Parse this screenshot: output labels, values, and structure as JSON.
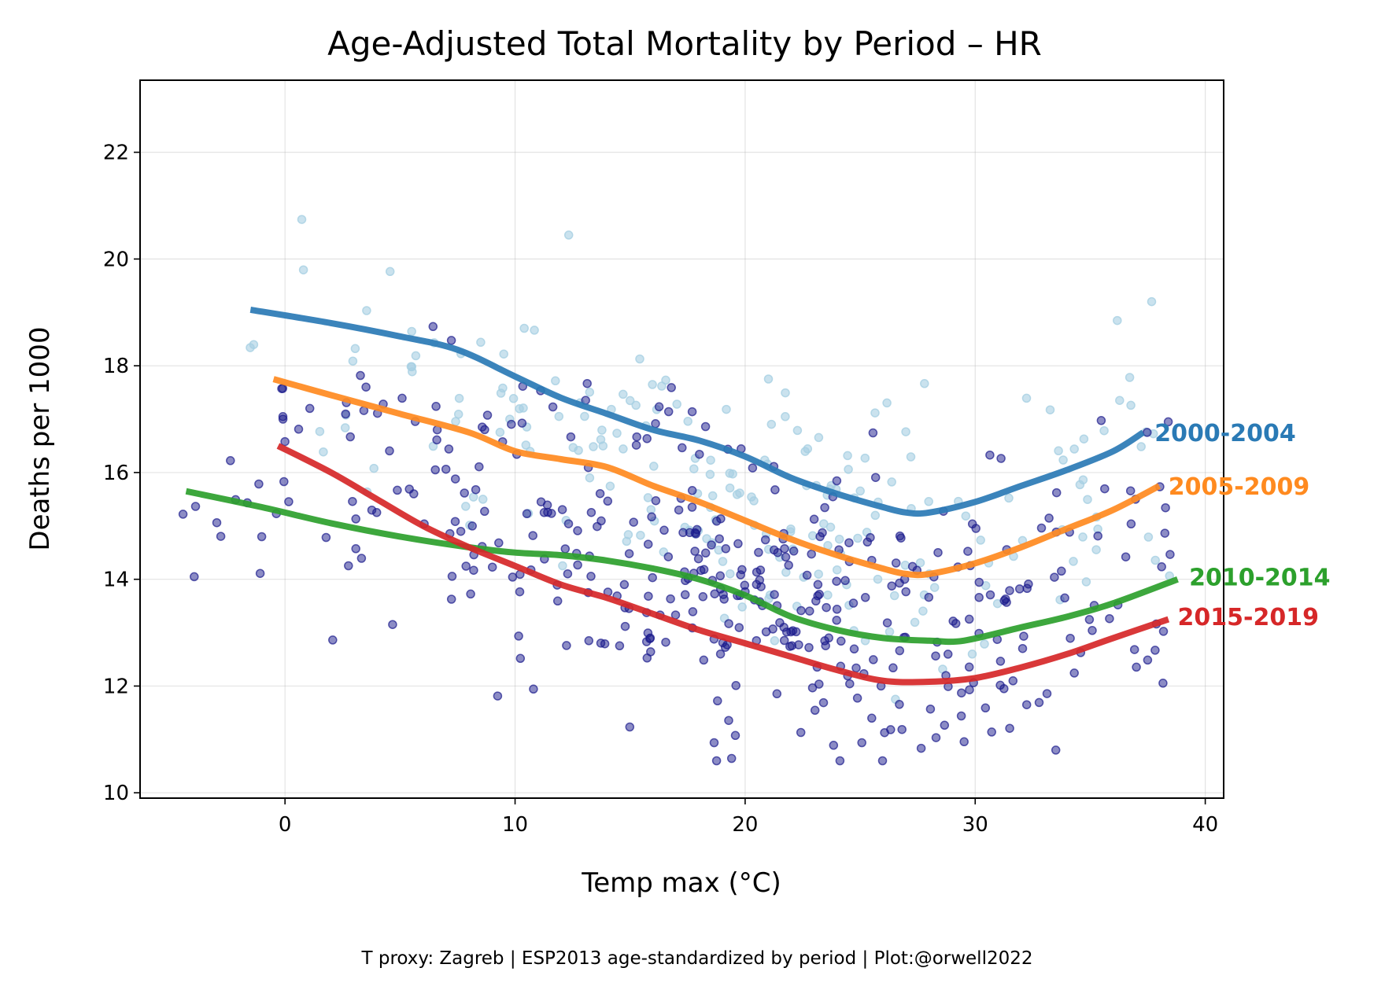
{
  "chart_data": {
    "type": "scatter",
    "title": "Age-Adjusted Total Mortality by Period – HR",
    "xlabel": "Temp max (°C)",
    "ylabel": "Deaths per 1000",
    "caption": "T proxy: Zagreb | ESP2013 age-standardized by period | Plot:@orwell2022",
    "xlim": [
      -6.3,
      40.8
    ],
    "ylim": [
      9.9,
      23.35
    ],
    "xticks": [
      0,
      10,
      20,
      30,
      40
    ],
    "yticks": [
      10,
      12,
      14,
      16,
      18,
      20,
      22
    ],
    "grid": true,
    "legend": "inline labels at right end of each curve",
    "scatter_colors": {
      "early": "#a6cfe2",
      "late": "#1a1a8c"
    },
    "series": [
      {
        "name": "2000-2004",
        "color": "#2a7ab5",
        "x": [
          -1.5,
          2,
          5,
          7.5,
          10,
          12,
          14,
          16,
          18,
          20,
          22,
          24,
          26,
          27,
          28,
          30,
          32,
          34,
          36,
          37.3
        ],
        "y": [
          19.05,
          18.8,
          18.55,
          18.3,
          17.8,
          17.4,
          17.1,
          16.8,
          16.6,
          16.3,
          15.9,
          15.6,
          15.35,
          15.25,
          15.25,
          15.45,
          15.75,
          16.05,
          16.4,
          16.75
        ]
      },
      {
        "name": "2005-2009",
        "color": "#ff8a1f",
        "x": [
          -0.5,
          2,
          5,
          8,
          10,
          12,
          14,
          16,
          18,
          20,
          22,
          24,
          26,
          27,
          28,
          30,
          32,
          34,
          36,
          38
        ],
        "y": [
          17.75,
          17.45,
          17.1,
          16.75,
          16.4,
          16.25,
          16.1,
          15.75,
          15.45,
          15.1,
          14.75,
          14.45,
          14.2,
          14.1,
          14.1,
          14.3,
          14.6,
          14.95,
          15.3,
          15.75
        ]
      },
      {
        "name": "2010-2014",
        "color": "#2ca02c",
        "x": [
          -4.3,
          -1,
          2,
          5,
          8,
          10,
          12,
          14,
          16,
          18,
          20,
          22,
          24,
          26,
          28,
          29.5,
          32,
          34,
          36,
          38.8
        ],
        "y": [
          15.65,
          15.35,
          15.05,
          14.8,
          14.6,
          14.5,
          14.45,
          14.35,
          14.2,
          14.0,
          13.7,
          13.3,
          13.05,
          12.9,
          12.85,
          12.85,
          13.1,
          13.3,
          13.55,
          14.0
        ]
      },
      {
        "name": "2015-2019",
        "color": "#d62728",
        "x": [
          -0.3,
          2,
          4,
          6,
          8,
          10,
          12,
          14,
          16,
          18,
          20,
          22,
          24,
          26,
          28,
          30,
          32,
          34,
          36,
          38.4
        ],
        "y": [
          16.5,
          16.0,
          15.5,
          15.0,
          14.6,
          14.25,
          13.9,
          13.65,
          13.35,
          13.05,
          12.8,
          12.55,
          12.3,
          12.1,
          12.08,
          12.15,
          12.35,
          12.6,
          12.9,
          13.25
        ]
      }
    ],
    "label_positions": [
      {
        "name": "2000-2004",
        "x": 37.8,
        "y": 16.75
      },
      {
        "name": "2005-2009",
        "x": 38.4,
        "y": 15.75
      },
      {
        "name": "2010-2014",
        "x": 39.3,
        "y": 14.05
      },
      {
        "name": "2015-2019",
        "x": 38.8,
        "y": 13.3
      }
    ]
  }
}
